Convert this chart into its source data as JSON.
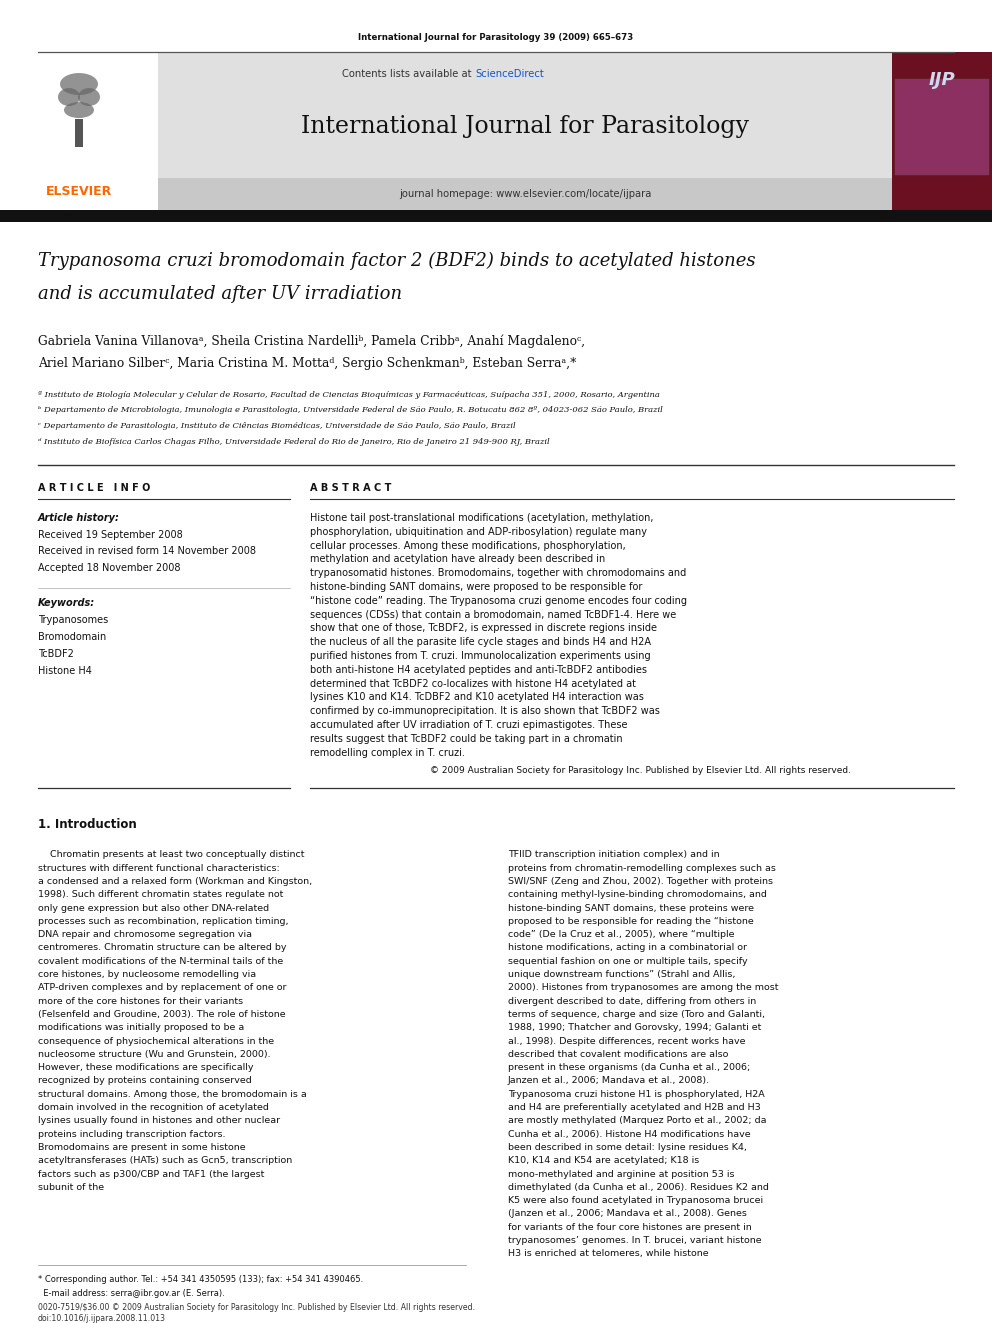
{
  "page_width": 9.92,
  "page_height": 13.23,
  "bg_color": "#ffffff",
  "top_journal_ref": "International Journal for Parasitology 39 (2009) 665–673",
  "journal_name": "International Journal for Parasitology",
  "journal_homepage": "journal homepage: www.elsevier.com/locate/ijpara",
  "sciencedirect_color": "#1155cc",
  "elsevier_color": "#FF6600",
  "elsevier_text": "ELSEVIER",
  "header_bg": "#e0e0e0",
  "dark_bar_color": "#111111",
  "title_line1": "Trypanosoma cruzi bromodomain factor 2 (BDF2) binds to acetylated histones",
  "title_line2": "and is accumulated after UV irradiation",
  "author_line1": "Gabriela Vanina Villanovaᵃ, Sheila Cristina Nardelliᵇ, Pamela Cribbᵃ, Anahí Magdalenoᶜ,",
  "author_line2": "Ariel Mariano Silberᶜ, Maria Cristina M. Mottaᵈ, Sergio Schenkmanᵇ, Esteban Serraᵃ,*",
  "affil_a": "ª Instituto de Biología Molecular y Celular de Rosario, Facultad de Ciencias Bioquímicas y Farmacéuticas, Suípacha 351, 2000, Rosario, Argentina",
  "affil_b": "ᵇ Departamento de Microbiologia, Imunologia e Parasitologia, Universidade Federal de São Paulo, R. Botucatu 862 8º, 04023-062 São Paulo, Brazil",
  "affil_c": "ᶜ Departamento de Parasitologia, Instituto de Ciências Biomédicas, Universidade de São Paulo, São Paulo, Brazil",
  "affil_d": "ᵈ Instituto de Biofísica Carlos Chagas Filho, Universidade Federal do Rio de Janeiro, Rio de Janeiro 21 949-900 RJ, Brazil",
  "article_info_header": "A R T I C L E   I N F O",
  "abstract_header": "A B S T R A C T",
  "article_history_label": "Article history:",
  "received1": "Received 19 September 2008",
  "received2": "Received in revised form 14 November 2008",
  "accepted": "Accepted 18 November 2008",
  "keywords_label": "Keywords:",
  "keywords": [
    "Trypanosomes",
    "Bromodomain",
    "TcBDF2",
    "Histone H4"
  ],
  "abstract_text": "Histone tail post-translational modifications (acetylation, methylation, phosphorylation, ubiquitination and ADP-ribosylation) regulate many cellular processes. Among these modifications, phosphorylation, methylation and acetylation have already been described in trypanosomatid histones. Bromodomains, together with chromodomains and histone-binding SANT domains, were proposed to be responsible for “histone code” reading. The Trypanosoma cruzi genome encodes four coding sequences (CDSs) that contain a bromodomain, named TcBDF1-4. Here we show that one of those, TcBDF2, is expressed in discrete regions inside the nucleus of all the parasite life cycle stages and binds H4 and H2A purified histones from T. cruzi. Immunolocalization experiments using both anti-histone H4 acetylated peptides and anti-TcBDF2 antibodies determined that TcBDF2 co-localizes with histone H4 acetylated at lysines K10 and K14. TcDBF2 and K10 acetylated H4 interaction was confirmed by co-immunoprecipitation. It is also shown that TcBDF2 was accumulated after UV irradiation of T. cruzi epimastigotes. These results suggest that TcBDF2 could be taking part in a chromatin remodelling complex in T. cruzi.",
  "copyright_text": "© 2009 Australian Society for Parasitology Inc. Published by Elsevier Ltd. All rights reserved.",
  "intro_header": "1. Introduction",
  "intro_text_left": "Chromatin presents at least two conceptually distinct structures with different functional characteristics: a condensed and a relaxed form (Workman and Kingston, 1998). Such different chromatin states regulate not only gene expression but also other DNA-related processes such as recombination, replication timing, DNA repair and chromosome segregation via centromeres. Chromatin structure can be altered by covalent modifications of the N-terminal tails of the core histones, by nucleosome remodelling via ATP-driven complexes and by replacement of one or more of the core histones for their variants (Felsenfeld and Groudine, 2003). The role of histone modifications was initially proposed to be a consequence of physiochemical alterations in the nucleosome structure (Wu and Grunstein, 2000). However, these modifications are specifically recognized by proteins containing conserved structural domains. Among those, the bromodomain is a domain involved in the recognition of acetylated lysines usually found in histones and other nuclear proteins including transcription factors. Bromodomains are present in some histone acetyltransferases (HATs) such as Gcn5, transcription factors such as p300/CBP and TAF1 (the largest subunit of the",
  "intro_text_right": "TFIID transcription initiation complex) and in proteins from chromatin-remodelling complexes such as SWI/SNF (Zeng and Zhou, 2002). Together with proteins containing methyl-lysine-binding chromodomains, and histone-binding SANT domains, these proteins were proposed to be responsible for reading the “histone code” (De la Cruz et al., 2005), where “multiple histone modifications, acting in a combinatorial or sequential fashion on one or multiple tails, specify unique downstream functions” (Strahl and Allis, 2000).\n\nHistones from trypanosomes are among the most divergent described to date, differing from others in terms of sequence, charge and size (Toro and Galanti, 1988, 1990; Thatcher and Gorovsky, 1994; Galanti et al., 1998). Despite differences, recent works have described that covalent modifications are also present in these organisms (da Cunha et al., 2006; Janzen et al., 2006; Mandava et al., 2008). Trypanosoma cruzi histone H1 is phosphorylated, H2A and H4 are preferentially acetylated and H2B and H3 are mostly methylated (Marquez Porto et al., 2002; da Cunha et al., 2006). Histone H4 modifications have been described in some detail: lysine residues K4, K10, K14 and K54 are acetylated; K18 is mono-methylated and arginine at position 53 is dimethylated (da Cunha et al., 2006). Residues K2 and K5 were also found acetylated in Trypanosoma brucei (Janzen et al., 2006; Mandava et al., 2008). Genes for variants of the four core histones are present in trypanosomes’ genomes. In T. brucei, variant histone H3 is enriched at telomeres, while histone",
  "footnote_text": "* Corresponding author. Tel.: +54 341 4350595 (133); fax: +54 341 4390465.",
  "footnote_email": "  E-mail address: serra@ibr.gov.ar (E. Serra).",
  "issn_line1": "0020-7519/$36.00 © 2009 Australian Society for Parasitology Inc. Published by Elsevier Ltd. All rights reserved.",
  "issn_line2": "doi:10.1016/j.ijpara.2008.11.013"
}
